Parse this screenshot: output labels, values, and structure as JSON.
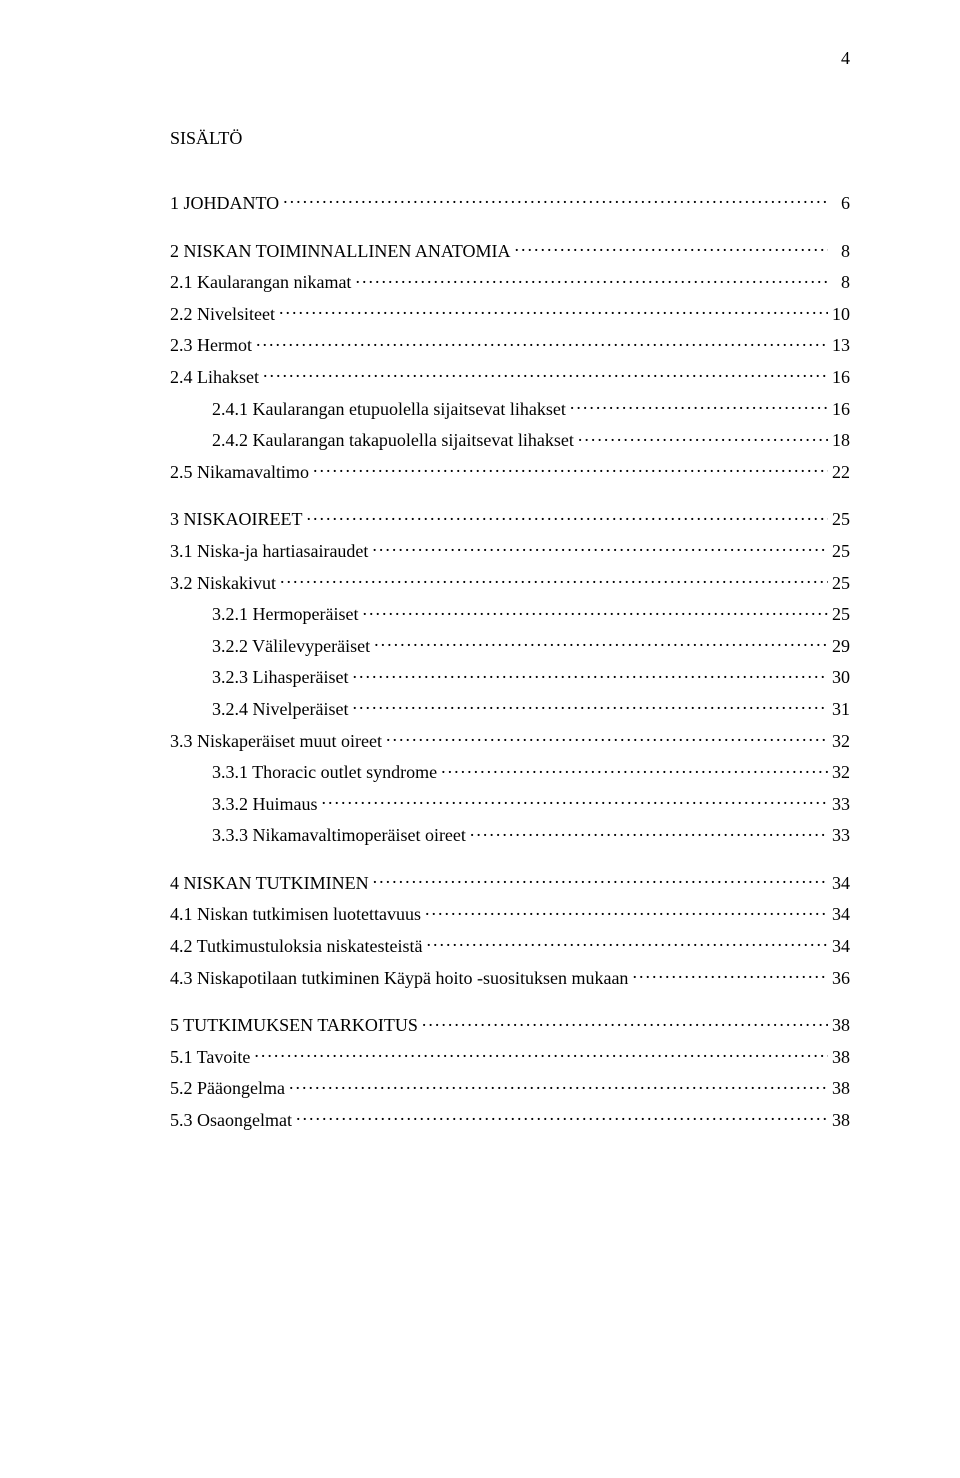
{
  "page_number": "4",
  "title": "SISÄLTÖ",
  "typography": {
    "font_family": "Times New Roman",
    "body_fontsize_pt": 13,
    "title_fontsize_pt": 13,
    "color": "#000000",
    "background": "#ffffff"
  },
  "toc": [
    {
      "level": 0,
      "label": "1 JOHDANTO",
      "page": "6"
    },
    {
      "level": 0,
      "label": "2 NISKAN TOIMINNALLINEN ANATOMIA",
      "page": "8"
    },
    {
      "level": 1,
      "label": "2.1 Kaularangan nikamat",
      "page": "8"
    },
    {
      "level": 1,
      "label": "2.2 Nivelsiteet",
      "page": "10"
    },
    {
      "level": 1,
      "label": "2.3 Hermot",
      "page": "13"
    },
    {
      "level": 1,
      "label": "2.4 Lihakset",
      "page": "16"
    },
    {
      "level": 2,
      "label": "2.4.1 Kaularangan etupuolella sijaitsevat lihakset",
      "page": "16"
    },
    {
      "level": 2,
      "label": "2.4.2 Kaularangan takapuolella sijaitsevat lihakset",
      "page": "18"
    },
    {
      "level": 1,
      "label": "2.5 Nikamavaltimo",
      "page": "22"
    },
    {
      "level": 0,
      "label": "3 NISKAOIREET",
      "page": "25"
    },
    {
      "level": 1,
      "label": "3.1 Niska-ja hartiasairaudet",
      "page": "25"
    },
    {
      "level": 1,
      "label": "3.2 Niskakivut",
      "page": "25"
    },
    {
      "level": 2,
      "label": "3.2.1 Hermoperäiset",
      "page": "25"
    },
    {
      "level": 2,
      "label": "3.2.2 Välilevyperäiset",
      "page": "29"
    },
    {
      "level": 2,
      "label": "3.2.3 Lihasperäiset",
      "page": "30"
    },
    {
      "level": 2,
      "label": "3.2.4 Nivelperäiset",
      "page": "31"
    },
    {
      "level": 1,
      "label": "3.3 Niskaperäiset muut oireet",
      "page": "32"
    },
    {
      "level": 2,
      "label": "3.3.1 Thoracic outlet syndrome",
      "page": "32"
    },
    {
      "level": 2,
      "label": "3.3.2 Huimaus",
      "page": "33"
    },
    {
      "level": 2,
      "label": "3.3.3 Nikamavaltimoperäiset oireet",
      "page": "33"
    },
    {
      "level": 0,
      "label": "4 NISKAN TUTKIMINEN",
      "page": "34"
    },
    {
      "level": 1,
      "label": "4.1 Niskan tutkimisen luotettavuus",
      "page": "34"
    },
    {
      "level": 1,
      "label": "4.2 Tutkimustuloksia niskatesteistä",
      "page": "34"
    },
    {
      "level": 1,
      "label": "4.3 Niskapotilaan tutkiminen Käypä hoito -suosituksen mukaan",
      "page": "36"
    },
    {
      "level": 0,
      "label": "5 TUTKIMUKSEN TARKOITUS",
      "page": "38"
    },
    {
      "level": 1,
      "label": "5.1 Tavoite",
      "page": "38"
    },
    {
      "level": 1,
      "label": "5.2 Pääongelma",
      "page": "38"
    },
    {
      "level": 1,
      "label": "5.3 Osaongelmat",
      "page": "38"
    }
  ]
}
